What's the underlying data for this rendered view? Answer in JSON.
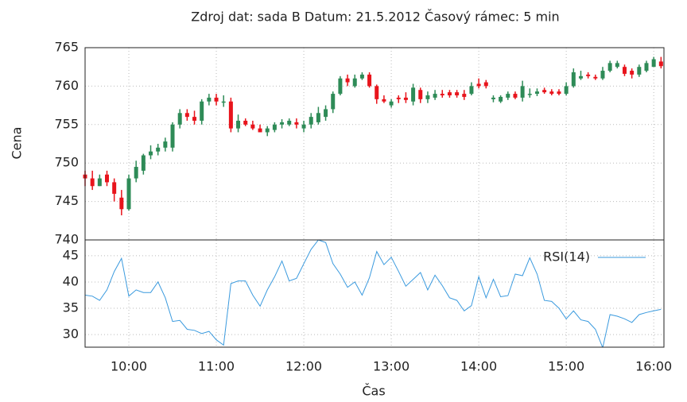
{
  "chart_data": [
    {
      "type": "candlestick",
      "title": "Zdroj dat: sada B Datum: 21.5.2012 Časový rámec: 5 min",
      "ylabel": "Cena",
      "up_color": "#2e8b57",
      "down_color": "#e8141c",
      "x": [
        "09:30",
        "09:35",
        "09:40",
        "09:45",
        "09:50",
        "09:55",
        "10:00",
        "10:05",
        "10:10",
        "10:15",
        "10:20",
        "10:25",
        "10:30",
        "10:35",
        "10:40",
        "10:45",
        "10:50",
        "10:55",
        "11:00",
        "11:05",
        "11:10",
        "11:15",
        "11:20",
        "11:25",
        "11:30",
        "11:35",
        "11:40",
        "11:45",
        "11:50",
        "11:55",
        "12:00",
        "12:05",
        "12:10",
        "12:15",
        "12:20",
        "12:25",
        "12:30",
        "12:35",
        "12:40",
        "12:45",
        "12:50",
        "12:55",
        "13:00",
        "13:05",
        "13:10",
        "13:15",
        "13:20",
        "13:25",
        "13:30",
        "13:35",
        "13:40",
        "13:45",
        "13:50",
        "13:55",
        "14:00",
        "14:05",
        "14:10",
        "14:15",
        "14:20",
        "14:25",
        "14:30",
        "14:35",
        "14:40",
        "14:45",
        "14:50",
        "14:55",
        "15:00",
        "15:05",
        "15:10",
        "15:15",
        "15:20",
        "15:25",
        "15:30",
        "15:35",
        "15:40",
        "15:45",
        "15:50",
        "15:55",
        "16:00",
        "16:05"
      ],
      "open": [
        748.5,
        748,
        747,
        748.5,
        747.5,
        745.5,
        744,
        748,
        749,
        751,
        751.5,
        752,
        752,
        755,
        756.5,
        756,
        755.5,
        758,
        758.5,
        758,
        758,
        754.5,
        755.5,
        755,
        754.5,
        754,
        754.3,
        755,
        755,
        755.3,
        754.5,
        755,
        755.3,
        756,
        757,
        759,
        761,
        760,
        761,
        761.5,
        760,
        758.3,
        757.5,
        758.5,
        758.5,
        758,
        759.5,
        758.3,
        758.5,
        759,
        759.2,
        759.2,
        759,
        759,
        760.3,
        760.5,
        758.3,
        758,
        758.5,
        759,
        758.5,
        759,
        759,
        759.5,
        759.3,
        759.3,
        759,
        760,
        761,
        761.5,
        761.2,
        761,
        762,
        762.5,
        762.5,
        762,
        761.5,
        762,
        762.5,
        763.2
      ],
      "high": [
        749,
        749,
        748.5,
        749,
        748,
        746.5,
        748.5,
        750.3,
        751.2,
        752.3,
        752.5,
        753.3,
        755.3,
        757,
        757,
        756.8,
        758.3,
        759,
        759,
        758.8,
        758.5,
        756.3,
        755.8,
        755.5,
        755,
        754.8,
        755.3,
        755.7,
        755.8,
        755.8,
        755.5,
        756.5,
        757.3,
        757.5,
        759.3,
        761.3,
        761.5,
        761.5,
        761.8,
        761.8,
        760.2,
        758.8,
        758.3,
        758.8,
        759.2,
        760.3,
        759.8,
        759.3,
        759.5,
        759.5,
        759.5,
        759.5,
        759.5,
        760.5,
        761,
        760.8,
        758.8,
        758.8,
        759.3,
        759.3,
        760.7,
        759.7,
        759.7,
        759.8,
        759.6,
        759.6,
        760.5,
        762.3,
        762,
        761.8,
        761.5,
        762.5,
        763.3,
        763.3,
        762.8,
        762.3,
        762.8,
        763.3,
        763.8,
        763.8
      ],
      "low": [
        747,
        746.5,
        747,
        747,
        745,
        743.2,
        743.8,
        747.5,
        748.5,
        750.5,
        751,
        751.5,
        751.5,
        754.5,
        755.5,
        755,
        755,
        757.5,
        757.5,
        757.3,
        754,
        754,
        754.8,
        754.3,
        754,
        753.5,
        754,
        754.5,
        754.8,
        754.5,
        754,
        754.5,
        755,
        755.5,
        756.5,
        758.8,
        760,
        759.8,
        760.8,
        759.8,
        757.7,
        757.8,
        757.2,
        757.8,
        757.8,
        757.5,
        757.8,
        757.8,
        758.2,
        758.5,
        758.5,
        758.5,
        758.2,
        758.8,
        759.7,
        759.7,
        757.9,
        757.8,
        758.2,
        758.3,
        758,
        758.5,
        758.7,
        759,
        758.8,
        758.8,
        758.8,
        759.8,
        760.8,
        761,
        760.8,
        760.8,
        761.8,
        762.3,
        761.3,
        761,
        761.2,
        761.8,
        762.5,
        762.3
      ],
      "close": [
        748,
        747,
        748,
        747.5,
        746,
        744,
        748,
        749.5,
        751,
        751.5,
        752,
        752.8,
        755,
        756.5,
        756,
        755.5,
        758,
        758.5,
        758,
        758,
        754.5,
        755.5,
        755,
        754.5,
        754,
        754.5,
        755,
        755.3,
        755.5,
        755,
        755,
        756,
        756.5,
        757,
        759,
        761,
        760.5,
        761,
        761.5,
        760,
        758.3,
        758,
        758,
        758.3,
        758.2,
        759.8,
        758.3,
        758.8,
        759,
        758.8,
        758.8,
        758.8,
        758.6,
        760,
        760,
        760,
        758.5,
        758.6,
        759,
        758.5,
        760,
        759,
        759.3,
        759.2,
        759,
        759,
        760,
        761.8,
        761.3,
        761.3,
        761,
        762,
        763,
        763,
        761.6,
        761.5,
        762.5,
        763,
        763.5,
        762.6
      ],
      "ylim": [
        740,
        765
      ],
      "yticks": [
        740,
        745,
        750,
        755,
        760,
        765
      ],
      "xlim": [
        "09:30",
        "16:07"
      ],
      "grid": true
    },
    {
      "type": "line",
      "xlabel": "Čas",
      "x": [
        "09:30",
        "09:35",
        "09:40",
        "09:45",
        "09:50",
        "09:55",
        "10:00",
        "10:05",
        "10:10",
        "10:15",
        "10:20",
        "10:25",
        "10:30",
        "10:35",
        "10:40",
        "10:45",
        "10:50",
        "10:55",
        "11:00",
        "11:05",
        "11:10",
        "11:15",
        "11:20",
        "11:25",
        "11:30",
        "11:35",
        "11:40",
        "11:45",
        "11:50",
        "11:55",
        "12:00",
        "12:05",
        "12:10",
        "12:15",
        "12:20",
        "12:25",
        "12:30",
        "12:35",
        "12:40",
        "12:45",
        "12:50",
        "12:55",
        "13:00",
        "13:05",
        "13:10",
        "13:15",
        "13:20",
        "13:25",
        "13:30",
        "13:35",
        "13:40",
        "13:45",
        "13:50",
        "13:55",
        "14:00",
        "14:05",
        "14:10",
        "14:15",
        "14:20",
        "14:25",
        "14:30",
        "14:35",
        "14:40",
        "14:45",
        "14:50",
        "14:55",
        "15:00",
        "15:05",
        "15:10",
        "15:15",
        "15:20",
        "15:25",
        "15:30",
        "15:35",
        "15:40",
        "15:45",
        "15:50",
        "15:55",
        "16:00",
        "16:05"
      ],
      "series": [
        {
          "name": "RSI(14)",
          "color": "#3a9ade",
          "values": [
            37.5,
            37.3,
            36.5,
            38.5,
            42,
            44.5,
            37.3,
            38.5,
            38,
            38,
            40,
            37,
            32.5,
            32.7,
            31,
            30.8,
            30.2,
            30.6,
            29,
            28,
            39.7,
            40.2,
            40.2,
            37.5,
            35.4,
            38.5,
            41,
            44,
            40.2,
            40.7,
            43.5,
            46.2,
            48,
            47.5,
            43.5,
            41.5,
            39,
            40,
            37.5,
            40.8,
            45.8,
            43.3,
            44.7,
            42,
            39.2,
            40.5,
            41.8,
            38.5,
            41.3,
            39.3,
            37,
            36.5,
            34.5,
            35.5,
            41,
            37,
            40.5,
            37.2,
            37.4,
            41.5,
            41.2,
            44.6,
            41.5,
            36.5,
            36.3,
            35,
            33,
            34.5,
            32.8,
            32.5,
            31,
            27.5,
            33.8,
            33.5,
            33,
            32.3,
            33.8,
            34.2,
            34.5,
            34.8
          ]
        }
      ],
      "ylim": [
        27.6,
        48
      ],
      "yticks": [
        30,
        35,
        40,
        45
      ],
      "xlim": [
        "09:30",
        "16:07"
      ],
      "xticks": [
        "10:00",
        "11:00",
        "12:00",
        "13:00",
        "14:00",
        "15:00",
        "16:00"
      ],
      "grid": true,
      "legend": "upper right"
    }
  ]
}
